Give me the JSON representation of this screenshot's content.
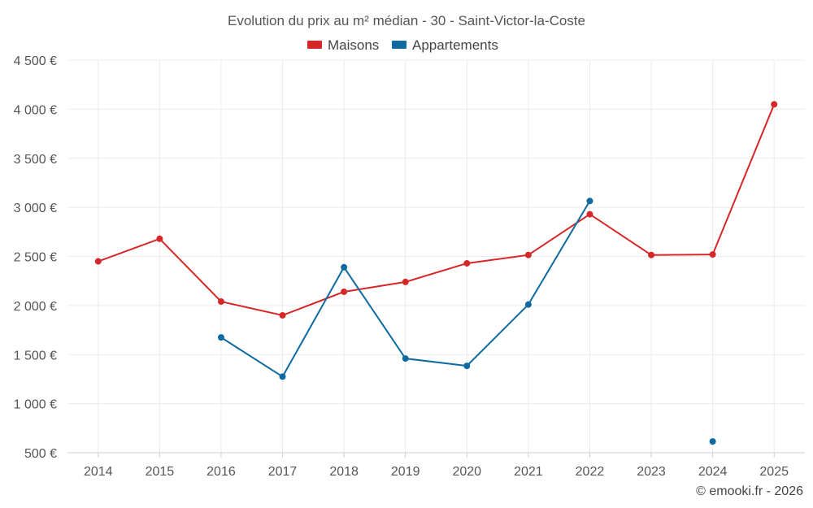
{
  "chart_data": {
    "type": "line",
    "title": "Evolution du prix au m² médian - 30 - Saint-Victor-la-Coste",
    "categories": [
      "2014",
      "2015",
      "2016",
      "2017",
      "2018",
      "2019",
      "2020",
      "2021",
      "2022",
      "2023",
      "2024",
      "2025"
    ],
    "series": [
      {
        "name": "Maisons",
        "color": "#d62728",
        "values": [
          2450,
          2680,
          2040,
          1900,
          2140,
          2240,
          2430,
          2515,
          2930,
          2515,
          2520,
          4050
        ]
      },
      {
        "name": "Appartements",
        "color": "#0e6aa0",
        "values": [
          null,
          null,
          1675,
          1275,
          2390,
          1460,
          1385,
          2010,
          3065,
          null,
          615,
          null
        ]
      }
    ],
    "ylim": [
      500,
      4500
    ],
    "yticks": [
      500,
      1000,
      1500,
      2000,
      2500,
      3000,
      3500,
      4000,
      4500
    ],
    "ytick_labels": [
      "500 €",
      "1 000 €",
      "1 500 €",
      "2 000 €",
      "2 500 €",
      "3 000 €",
      "3 500 €",
      "4 000 €",
      "4 500 €"
    ],
    "grid": true,
    "legend_position": "top-center",
    "credit": "© emooki.fr - 2026"
  }
}
